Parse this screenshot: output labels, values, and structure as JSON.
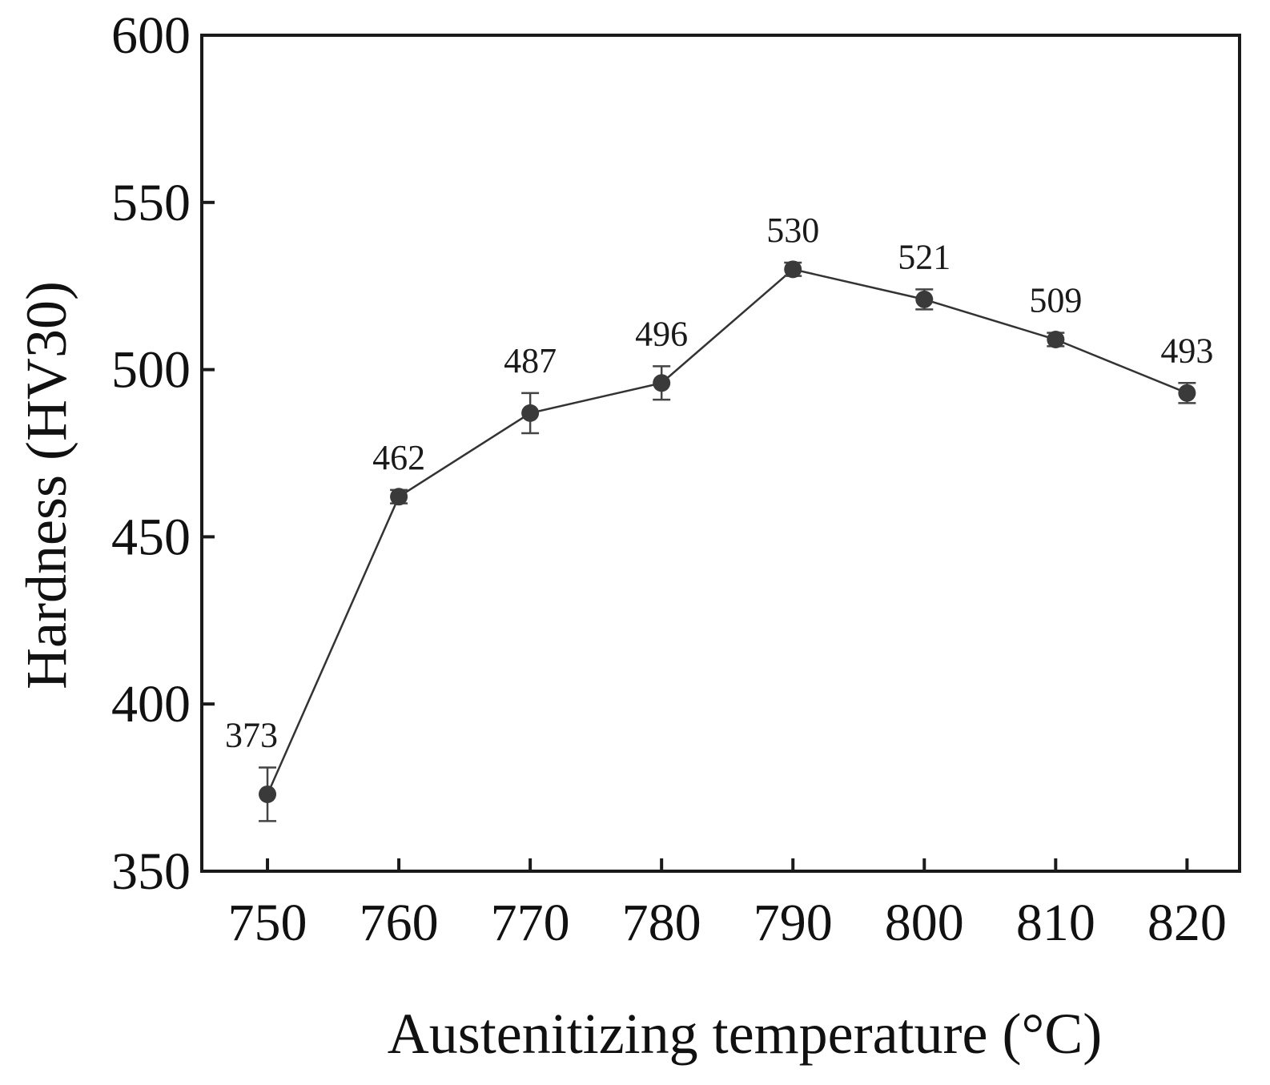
{
  "chart_data": {
    "type": "line",
    "title": "",
    "xlabel": "Austenitizing temperature (°C)",
    "ylabel": "Hardness (HV30)",
    "xlim": [
      745,
      824
    ],
    "ylim": [
      350,
      600
    ],
    "x": [
      750,
      760,
      770,
      780,
      790,
      800,
      810,
      820
    ],
    "x_tick_labels": [
      "750",
      "760",
      "770",
      "780",
      "790",
      "800",
      "810",
      "820"
    ],
    "y_ticks": [
      350,
      400,
      450,
      500,
      550,
      600
    ],
    "y_tick_labels": [
      "350",
      "400",
      "450",
      "500",
      "550",
      "600"
    ],
    "series": [
      {
        "name": "Hardness",
        "values": [
          373,
          462,
          487,
          496,
          530,
          521,
          509,
          493
        ],
        "errors": [
          8,
          2,
          6,
          5,
          2,
          3,
          2,
          3
        ],
        "labels": [
          "373",
          "462",
          "487",
          "496",
          "530",
          "521",
          "509",
          "493"
        ]
      }
    ],
    "grid": false,
    "legend": "none",
    "line_color": "#333333",
    "marker_color": "#3a3a3a"
  }
}
